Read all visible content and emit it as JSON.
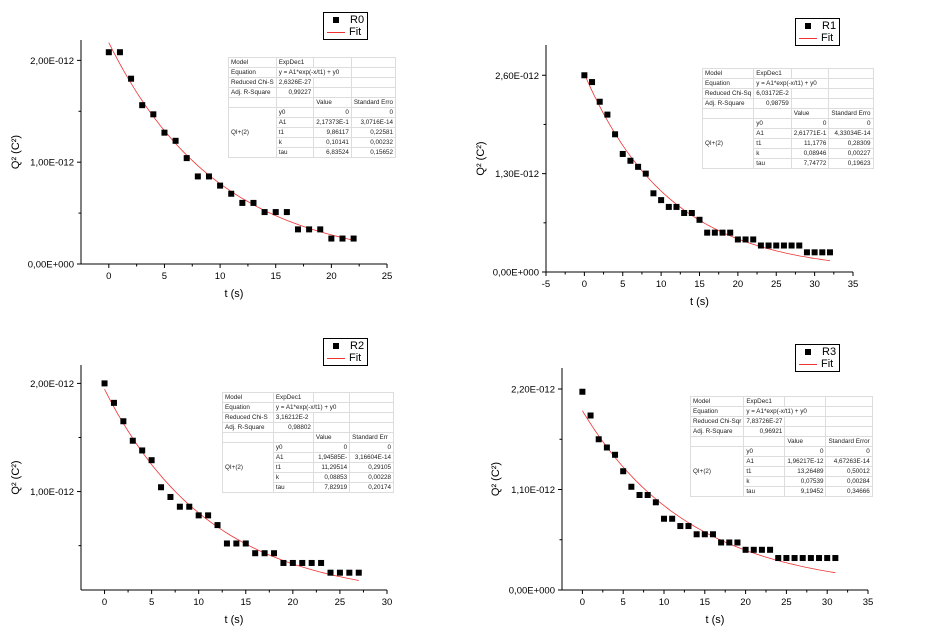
{
  "chart_data": [
    {
      "type": "scatter",
      "legend": [
        "R0",
        "Fit"
      ],
      "xlabel": "t (s)",
      "ylabel": "Q² (C²)",
      "xlim": [
        -2.5,
        25
      ],
      "ylim": [
        0,
        2.2e-12
      ],
      "xticks": [
        0,
        5,
        10,
        15,
        20,
        25
      ],
      "yticks": [
        0,
        1e-12,
        2e-12
      ],
      "ytick_labels": [
        "0,00E+000",
        "1,00E-012",
        "2,00E-012"
      ],
      "x": [
        0,
        1,
        2,
        3,
        4,
        5,
        6,
        7,
        8,
        9,
        10,
        11,
        12,
        13,
        14,
        15,
        16,
        17,
        18,
        19,
        20,
        21,
        22
      ],
      "y": [
        2.08e-12,
        2.08e-12,
        1.82e-12,
        1.56e-12,
        1.47e-12,
        1.29e-12,
        1.21e-12,
        1.04e-12,
        8.6e-13,
        8.6e-13,
        7.7e-13,
        6.9e-13,
        6e-13,
        6e-13,
        5.1e-13,
        5.1e-13,
        5.1e-13,
        3.4e-13,
        3.4e-13,
        3.4e-13,
        2.5e-13,
        2.5e-13,
        2.5e-13
      ],
      "fit": {
        "A1": 2.17373e-12,
        "t1": 9.86117,
        "color": "#e33"
      },
      "table": {
        "model": "ExpDec1",
        "equation": "y = A1*exp(-x/t1) + y0",
        "chi_label": "Reduced Chi-S",
        "chi": "2,6326E-27",
        "r2_label": "Adj. R-Square",
        "r2": "0,99227",
        "value_h": "Value",
        "err_h": "Standard Erro",
        "group": "QI+(2)",
        "params": [
          [
            "y0",
            "0",
            "0"
          ],
          [
            "A1",
            "2,17373E-1",
            "3,0716E-14"
          ],
          [
            "t1",
            "9,86117",
            "0,22581"
          ],
          [
            "k",
            "0,10141",
            "0,00232"
          ],
          [
            "tau",
            "6,83524",
            "0,15652"
          ]
        ]
      }
    },
    {
      "type": "scatter",
      "legend": [
        "R1",
        "Fit"
      ],
      "xlabel": "t (s)",
      "ylabel": "Q² (C²)",
      "xlim": [
        -5,
        35
      ],
      "ylim": [
        0,
        3e-12
      ],
      "xticks": [
        -5,
        0,
        5,
        10,
        15,
        20,
        25,
        30,
        35
      ],
      "yticks": [
        0,
        1.3e-12,
        2.6e-12
      ],
      "ytick_labels": [
        "0,00E+000",
        "1,30E-012",
        "2,60E-012"
      ],
      "x": [
        0,
        1,
        2,
        3,
        4,
        5,
        6,
        7,
        8,
        9,
        10,
        11,
        12,
        13,
        14,
        15,
        16,
        17,
        18,
        19,
        20,
        21,
        22,
        23,
        24,
        25,
        26,
        27,
        28,
        29,
        30,
        31,
        32
      ],
      "y": [
        2.6e-12,
        2.51e-12,
        2.25e-12,
        2.08e-12,
        1.82e-12,
        1.56e-12,
        1.47e-12,
        1.39e-12,
        1.3e-12,
        1.04e-12,
        9.5e-13,
        8.6e-13,
        8.6e-13,
        7.8e-13,
        7.8e-13,
        6.9e-13,
        5.2e-13,
        5.2e-13,
        5.2e-13,
        5.2e-13,
        4.3e-13,
        4.3e-13,
        4.3e-13,
        3.5e-13,
        3.5e-13,
        3.5e-13,
        3.5e-13,
        3.5e-13,
        3.5e-13,
        2.6e-13,
        2.6e-13,
        2.6e-13,
        2.6e-13
      ],
      "fit": {
        "A1": 2.61771e-12,
        "t1": 11.1776,
        "color": "#e33"
      },
      "table": {
        "model": "ExpDec1",
        "equation": "y = A1*exp(-x/t1) + y0",
        "chi_label": "Reduced Chi-Sq",
        "chi": "6,03172E-2",
        "r2_label": "Adj. R-Square",
        "r2": "0,98759",
        "value_h": "Value",
        "err_h": "Standard Erro",
        "group": "QI+(2)",
        "params": [
          [
            "y0",
            "0",
            "0"
          ],
          [
            "A1",
            "2,61771E-1",
            "4,33034E-14"
          ],
          [
            "t1",
            "11,1776",
            "0,28309"
          ],
          [
            "k",
            "0,08946",
            "0,00227"
          ],
          [
            "tau",
            "7,74772",
            "0,19623"
          ]
        ]
      }
    },
    {
      "type": "scatter",
      "legend": [
        "R2",
        "Fit"
      ],
      "xlabel": "t (s)",
      "ylabel": "Q² (C²)",
      "xlim": [
        -2.5,
        30
      ],
      "ylim": [
        9e-14,
        2.17e-12
      ],
      "xticks": [
        0,
        5,
        10,
        15,
        20,
        25,
        30
      ],
      "yticks": [
        1e-12,
        2e-12
      ],
      "ytick_labels": [
        "1,00E-012",
        "2,00E-012"
      ],
      "x": [
        0,
        1,
        2,
        3,
        4,
        5,
        6,
        7,
        8,
        9,
        10,
        11,
        12,
        13,
        14,
        15,
        16,
        17,
        18,
        19,
        20,
        21,
        22,
        23,
        24,
        25,
        26,
        27
      ],
      "y": [
        2e-12,
        1.82e-12,
        1.65e-12,
        1.47e-12,
        1.38e-12,
        1.29e-12,
        1.04e-12,
        9.5e-13,
        8.6e-13,
        8.6e-13,
        7.8e-13,
        7.8e-13,
        6.9e-13,
        5.2e-13,
        5.2e-13,
        5.2e-13,
        4.3e-13,
        4.3e-13,
        4.3e-13,
        3.4e-13,
        3.4e-13,
        3.4e-13,
        3.4e-13,
        3.4e-13,
        2.5e-13,
        2.5e-13,
        2.5e-13,
        2.5e-13
      ],
      "fit": {
        "A1": 1.94585e-12,
        "t1": 11.29514,
        "color": "#e33"
      },
      "table": {
        "model": "ExpDec1",
        "equation": "y = A1*exp(-x/t1) + y0",
        "chi_label": "Reduced Chi-S",
        "chi": "3,16212E-2",
        "r2_label": "Adj. R-Square",
        "r2": "0,98802",
        "value_h": "Value",
        "err_h": "Standard Err",
        "group": "QI+(2)",
        "params": [
          [
            "y0",
            "0",
            "0"
          ],
          [
            "A1",
            "1,94585E-",
            "3,16604E-14"
          ],
          [
            "t1",
            "11,29514",
            "0,29105"
          ],
          [
            "k",
            "0,08853",
            "0,00228"
          ],
          [
            "tau",
            "7,82919",
            "0,20174"
          ]
        ]
      }
    },
    {
      "type": "scatter",
      "legend": [
        "R3",
        "Fit"
      ],
      "xlabel": "t (s)",
      "ylabel": "Q² (C²)",
      "xlim": [
        -2.5,
        35
      ],
      "ylim": [
        0,
        2.43e-12
      ],
      "xticks": [
        0,
        5,
        10,
        15,
        20,
        25,
        30,
        35
      ],
      "yticks": [
        0,
        1.1e-12,
        2.2e-12
      ],
      "ytick_labels": [
        "0,00E+000",
        "1,10E-012",
        "2,20E-012"
      ],
      "x": [
        0,
        1,
        2,
        3,
        4,
        5,
        6,
        7,
        8,
        9,
        10,
        11,
        12,
        13,
        14,
        15,
        16,
        17,
        18,
        19,
        20,
        21,
        22,
        23,
        24,
        25,
        26,
        27,
        28,
        29,
        30,
        31
      ],
      "y": [
        2.17e-12,
        1.91e-12,
        1.65e-12,
        1.56e-12,
        1.48e-12,
        1.3e-12,
        1.13e-12,
        1.04e-12,
        1.04e-12,
        9.6e-13,
        7.8e-13,
        7.8e-13,
        7e-13,
        7e-13,
        6.1e-13,
        6.1e-13,
        6.1e-13,
        5.2e-13,
        5.2e-13,
        5.2e-13,
        4.4e-13,
        4.4e-13,
        4.4e-13,
        4.4e-13,
        3.5e-13,
        3.5e-13,
        3.5e-13,
        3.5e-13,
        3.5e-13,
        3.5e-13,
        3.5e-13,
        3.5e-13
      ],
      "fit": {
        "A1": 1.96217e-12,
        "t1": 13.26489,
        "color": "#e33"
      },
      "table": {
        "model": "ExpDec1",
        "equation": "y = A1*exp(-x/t1) + y0",
        "chi_label": "Reduced Chi-Sqr",
        "chi": "7,83726E-27",
        "r2_label": "Adj. R-Square",
        "r2": "0,96921",
        "value_h": "Value",
        "err_h": "Standard Error",
        "group": "QI+(2)",
        "params": [
          [
            "y0",
            "0",
            "0"
          ],
          [
            "A1",
            "1,96217E-12",
            "4,67263E-14"
          ],
          [
            "t1",
            "13,26489",
            "0,50012"
          ],
          [
            "k",
            "0,07539",
            "0,00284"
          ],
          [
            "tau",
            "9,19452",
            "0,34666"
          ]
        ]
      }
    }
  ]
}
